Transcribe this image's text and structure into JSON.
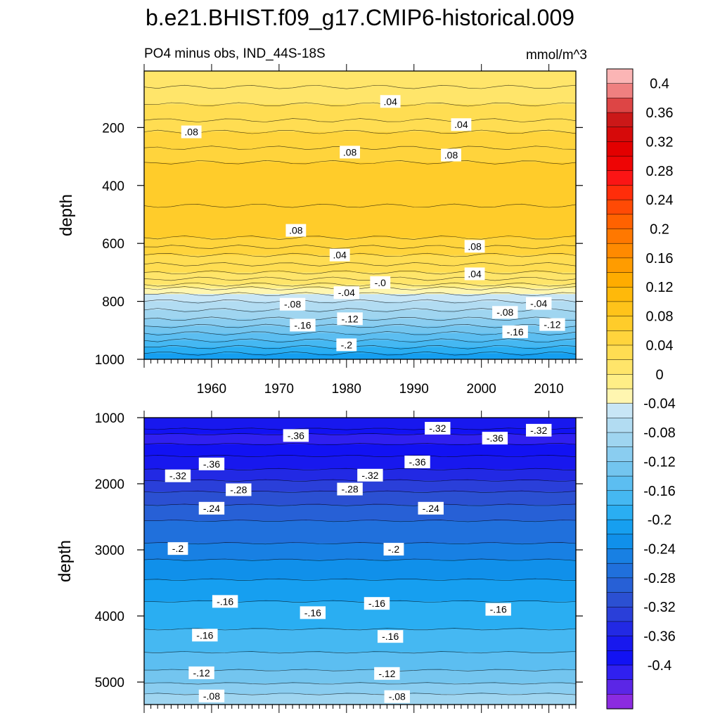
{
  "chart_data": [
    {
      "type": "heatmap",
      "panel": "top",
      "title": "b.e21.BHIST.f09_g17.CMIP6-historical.009",
      "subtitle_left": "PO4 minus obs, IND_44S-18S",
      "subtitle_right": "mmol/m^3",
      "xlabel": "",
      "ylabel": "depth",
      "xlim": [
        1950,
        2014
      ],
      "ylim": [
        1000,
        5
      ],
      "y_reversed": true,
      "x_ticks": [
        1960,
        1970,
        1980,
        1990,
        2000,
        2010
      ],
      "y_ticks": [
        200,
        400,
        600,
        800,
        1000
      ],
      "bands": [
        {
          "top": 5,
          "value": 0.02
        },
        {
          "top": 60,
          "value": 0.03
        },
        {
          "top": 120,
          "value": 0.04
        },
        {
          "top": 175,
          "value": 0.05
        },
        {
          "top": 215,
          "value": 0.06
        },
        {
          "top": 270,
          "value": 0.07
        },
        {
          "top": 320,
          "value": 0.08
        },
        {
          "top": 470,
          "value": 0.09
        },
        {
          "top": 580,
          "value": 0.07
        },
        {
          "top": 612,
          "value": 0.06
        },
        {
          "top": 640,
          "value": 0.05
        },
        {
          "top": 672,
          "value": 0.04
        },
        {
          "top": 700,
          "value": 0.03
        },
        {
          "top": 722,
          "value": 0.02
        },
        {
          "top": 742,
          "value": 0.01
        },
        {
          "top": 755,
          "value": -0.01
        },
        {
          "top": 775,
          "value": -0.03
        },
        {
          "top": 800,
          "value": -0.05
        },
        {
          "top": 830,
          "value": -0.07
        },
        {
          "top": 860,
          "value": -0.09
        },
        {
          "top": 885,
          "value": -0.11
        },
        {
          "top": 910,
          "value": -0.13
        },
        {
          "top": 935,
          "value": -0.15
        },
        {
          "top": 958,
          "value": -0.17
        },
        {
          "top": 980,
          "value": -0.19
        }
      ],
      "contour_labels": [
        {
          "text": ".04",
          "x": 1986.5,
          "y": 110
        },
        {
          "text": ".08",
          "x": 1957,
          "y": 215
        },
        {
          "text": ".04",
          "x": 1997,
          "y": 190
        },
        {
          "text": ".08",
          "x": 1980.5,
          "y": 285
        },
        {
          "text": ".08",
          "x": 1995.5,
          "y": 295
        },
        {
          "text": ".08",
          "x": 1972.5,
          "y": 555
        },
        {
          "text": ".08",
          "x": 1999,
          "y": 610
        },
        {
          "text": ".04",
          "x": 1979,
          "y": 640
        },
        {
          "text": ".04",
          "x": 1999,
          "y": 705
        },
        {
          "text": "-.0",
          "x": 1985,
          "y": 735
        },
        {
          "text": "-.04",
          "x": 1980,
          "y": 770
        },
        {
          "text": "-.08",
          "x": 1972,
          "y": 810
        },
        {
          "text": "-.08",
          "x": 2003.5,
          "y": 838
        },
        {
          "text": "-.04",
          "x": 2008.5,
          "y": 807
        },
        {
          "text": "-.12",
          "x": 1980.5,
          "y": 860
        },
        {
          "text": "-.12",
          "x": 2010.5,
          "y": 880
        },
        {
          "text": "-.16",
          "x": 1973.5,
          "y": 882
        },
        {
          "text": "-.16",
          "x": 2005,
          "y": 905
        },
        {
          "text": "-.2",
          "x": 1980,
          "y": 950
        }
      ]
    },
    {
      "type": "heatmap",
      "panel": "bottom",
      "xlabel": "",
      "ylabel": "depth",
      "xlim": [
        1950,
        2014
      ],
      "ylim": [
        5340,
        1000
      ],
      "y_reversed": true,
      "y_ticks": [
        1000,
        2000,
        3000,
        4000,
        5000
      ],
      "bands": [
        {
          "top": 1000,
          "value": -0.35
        },
        {
          "top": 1170,
          "value": -0.37
        },
        {
          "top": 1250,
          "value": -0.39
        },
        {
          "top": 1400,
          "value": -0.37
        },
        {
          "top": 1580,
          "value": -0.35
        },
        {
          "top": 1780,
          "value": -0.33
        },
        {
          "top": 1950,
          "value": -0.31
        },
        {
          "top": 2120,
          "value": -0.29
        },
        {
          "top": 2320,
          "value": -0.27
        },
        {
          "top": 2560,
          "value": -0.25
        },
        {
          "top": 2900,
          "value": -0.23
        },
        {
          "top": 3150,
          "value": -0.21
        },
        {
          "top": 3450,
          "value": -0.19
        },
        {
          "top": 3780,
          "value": -0.17
        },
        {
          "top": 4200,
          "value": -0.15
        },
        {
          "top": 4550,
          "value": -0.13
        },
        {
          "top": 4820,
          "value": -0.11
        },
        {
          "top": 5020,
          "value": -0.09
        },
        {
          "top": 5180,
          "value": -0.07
        }
      ],
      "contour_labels": [
        {
          "text": "-.36",
          "x": 1972.5,
          "y": 1270
        },
        {
          "text": "-.32",
          "x": 1993.5,
          "y": 1160
        },
        {
          "text": "-.36",
          "x": 2002,
          "y": 1310
        },
        {
          "text": "-.32",
          "x": 2008.5,
          "y": 1190
        },
        {
          "text": "-.36",
          "x": 1960,
          "y": 1700
        },
        {
          "text": "-.36",
          "x": 1990.5,
          "y": 1670
        },
        {
          "text": "-.32",
          "x": 1955,
          "y": 1880
        },
        {
          "text": "-.32",
          "x": 1983.5,
          "y": 1870
        },
        {
          "text": "-.28",
          "x": 1964,
          "y": 2090
        },
        {
          "text": "-.28",
          "x": 1980.5,
          "y": 2080
        },
        {
          "text": "-.24",
          "x": 1960,
          "y": 2370
        },
        {
          "text": "-.24",
          "x": 1992.5,
          "y": 2370
        },
        {
          "text": "-.2",
          "x": 1955,
          "y": 2980
        },
        {
          "text": "-.2",
          "x": 1987,
          "y": 2990
        },
        {
          "text": "-.16",
          "x": 1962,
          "y": 3780
        },
        {
          "text": "-.16",
          "x": 1975,
          "y": 3950
        },
        {
          "text": "-.16",
          "x": 1984.5,
          "y": 3810
        },
        {
          "text": "-.16",
          "x": 2002.5,
          "y": 3900
        },
        {
          "text": "-.16",
          "x": 1959,
          "y": 4290
        },
        {
          "text": "-.16",
          "x": 1986.5,
          "y": 4310
        },
        {
          "text": "-.12",
          "x": 1958.5,
          "y": 4860
        },
        {
          "text": "-.12",
          "x": 1986,
          "y": 4870
        },
        {
          "text": "-.08",
          "x": 1960,
          "y": 5210
        },
        {
          "text": "-.08",
          "x": 1987.5,
          "y": 5220
        }
      ]
    }
  ],
  "colorbar": {
    "label_values": [
      "0.4",
      "0.36",
      "0.32",
      "0.28",
      "0.24",
      "0.2",
      "0.16",
      "0.12",
      "0.08",
      "0.04",
      "0",
      "-0.04",
      "-0.08",
      "-0.12",
      "-0.16",
      "-0.2",
      "-0.24",
      "-0.28",
      "-0.32",
      "-0.36",
      "-0.4"
    ],
    "levels_top_to_bottom": [
      0.42,
      0.4,
      0.38,
      0.36,
      0.34,
      0.32,
      0.3,
      0.28,
      0.26,
      0.24,
      0.22,
      0.2,
      0.18,
      0.16,
      0.14,
      0.12,
      0.1,
      0.08,
      0.06,
      0.04,
      0.02,
      0.0,
      -0.02,
      -0.04,
      -0.06,
      -0.08,
      -0.1,
      -0.12,
      -0.14,
      -0.16,
      -0.18,
      -0.2,
      -0.22,
      -0.24,
      -0.26,
      -0.28,
      -0.3,
      -0.32,
      -0.34,
      -0.36,
      -0.38,
      -0.4
    ],
    "colors_top_to_bottom": [
      "#fbb5b5",
      "#ef8080",
      "#dd4545",
      "#cb1818",
      "#d60a0a",
      "#e30000",
      "#ee0505",
      "#fb1515",
      "#ff2d0a",
      "#ff4a05",
      "#ff6200",
      "#ff7800",
      "#ff8a00",
      "#ff9c00",
      "#ffac00",
      "#ffb90a",
      "#ffc31a",
      "#ffcc2a",
      "#ffd43c",
      "#ffdd52",
      "#ffe56a",
      "#ffee86",
      "#fff6b0",
      "#c8e6f6",
      "#b2dcf2",
      "#9fd5f0",
      "#8acdf0",
      "#73c5ef",
      "#5cbef1",
      "#45b8f2",
      "#2aaef2",
      "#169ff0",
      "#1090ea",
      "#1880e3",
      "#2070dc",
      "#2760d6",
      "#2b50d2",
      "#2a3fd9",
      "#2229e4",
      "#1818ee",
      "#1212f3",
      "#3020f0",
      "#5b26e6",
      "#8b2be0"
    ]
  }
}
